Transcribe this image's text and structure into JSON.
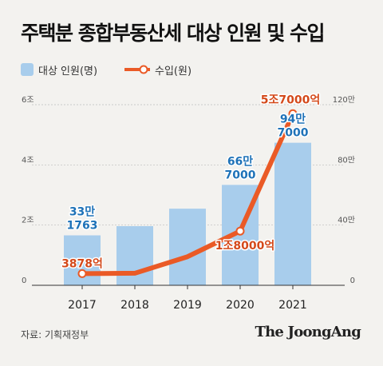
{
  "title": "주택분 종합부동산세 대상 인원 및 수입",
  "legend": {
    "bar_label": "대상 인원(명)",
    "line_label": "수입(원)"
  },
  "source": "자료: 기획재정부",
  "brand": "The JoongAng",
  "colors": {
    "bar": "#a8cdec",
    "line": "#ea5a26",
    "bar_label": "#1e72b8",
    "line_label": "#d4491a",
    "axis_text": "#555555",
    "grid": "#bcbcbc"
  },
  "chart_data": {
    "type": "bar",
    "categories": [
      "2017",
      "2018",
      "2019",
      "2020",
      "2021"
    ],
    "left_axis": {
      "ticks": [
        "0",
        "2조",
        "4조",
        "6조"
      ],
      "ylim": [
        0,
        6
      ]
    },
    "right_axis": {
      "ticks": [
        "0",
        "40만",
        "80만",
        "120만"
      ],
      "ylim": [
        0,
        120
      ]
    },
    "series": [
      {
        "name": "대상 인원(명)",
        "type": "bar",
        "axis": "right",
        "values": [
          33.1763,
          39.3,
          50.9,
          66.7,
          94.7
        ]
      },
      {
        "name": "수입(원)",
        "type": "line",
        "axis": "left",
        "values": [
          0.3878,
          0.4,
          0.95,
          1.8,
          5.7
        ]
      }
    ],
    "data_labels": [
      {
        "series": 0,
        "index": 0,
        "lines": [
          "33만",
          "1763"
        ]
      },
      {
        "series": 0,
        "index": 3,
        "lines": [
          "66만",
          "7000"
        ]
      },
      {
        "series": 0,
        "index": 4,
        "lines": [
          "94만",
          "7000"
        ]
      },
      {
        "series": 1,
        "index": 0,
        "lines": [
          "3878억"
        ]
      },
      {
        "series": 1,
        "index": 3,
        "lines": [
          "1조8000억"
        ]
      },
      {
        "series": 1,
        "index": 4,
        "lines": [
          "5조7000억"
        ]
      }
    ]
  }
}
